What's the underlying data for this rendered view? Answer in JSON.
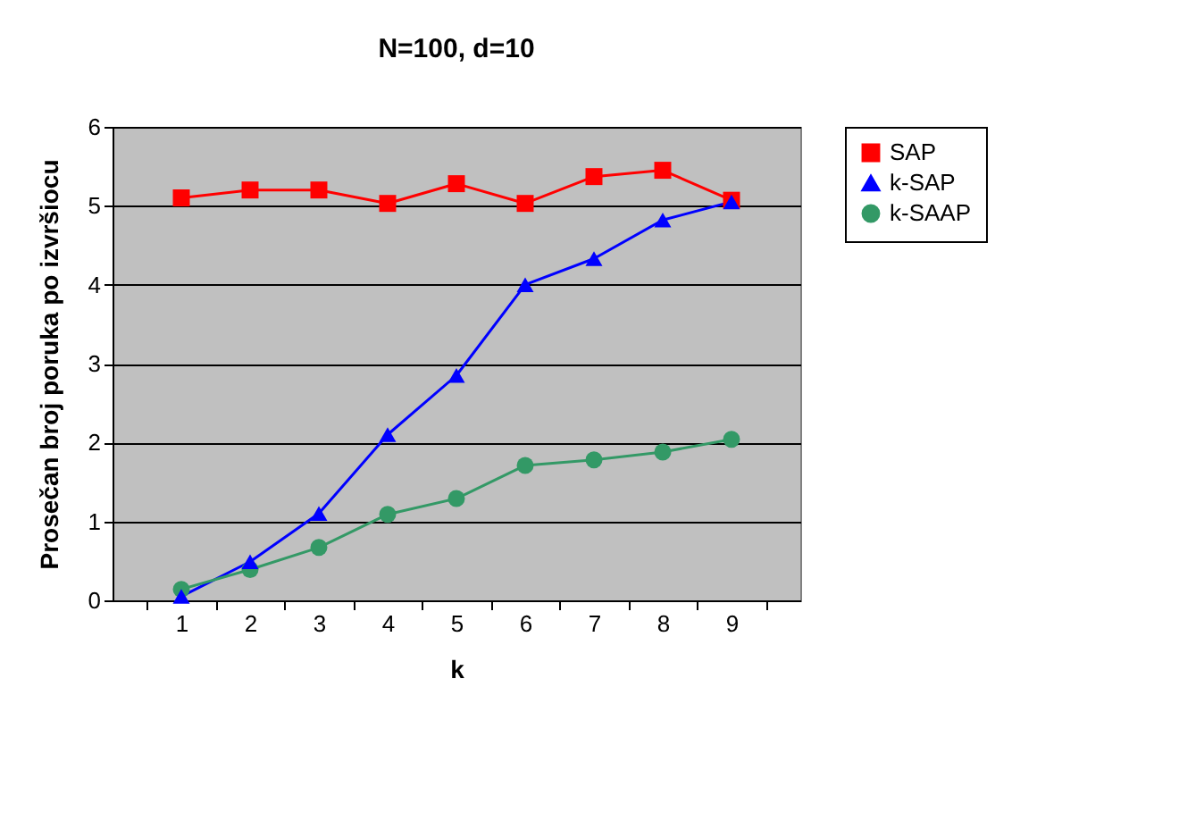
{
  "chart_data": {
    "type": "line",
    "title": "N=100, d=10",
    "xlabel": "k",
    "ylabel": "Prosečan broj poruka po izvršiocu",
    "categories": [
      "1",
      "2",
      "3",
      "4",
      "5",
      "6",
      "7",
      "8",
      "9"
    ],
    "series": [
      {
        "name": "SAP",
        "color": "#ff0000",
        "marker": "square",
        "values": [
          5.1,
          5.2,
          5.2,
          5.03,
          5.28,
          5.03,
          5.37,
          5.45,
          5.07
        ]
      },
      {
        "name": "k-SAP",
        "color": "#0000ff",
        "marker": "triangle",
        "values": [
          0.05,
          0.49,
          1.1,
          2.1,
          2.85,
          4.0,
          4.33,
          4.82,
          5.05
        ]
      },
      {
        "name": "k-SAAP",
        "color": "#339966",
        "marker": "circle",
        "values": [
          0.14,
          0.39,
          0.67,
          1.09,
          1.29,
          1.71,
          1.78,
          1.88,
          2.04
        ]
      }
    ],
    "ylim": [
      0,
      6
    ],
    "yticks": [
      0,
      1,
      2,
      3,
      4,
      5,
      6
    ],
    "grid": "y",
    "legend": "right"
  }
}
